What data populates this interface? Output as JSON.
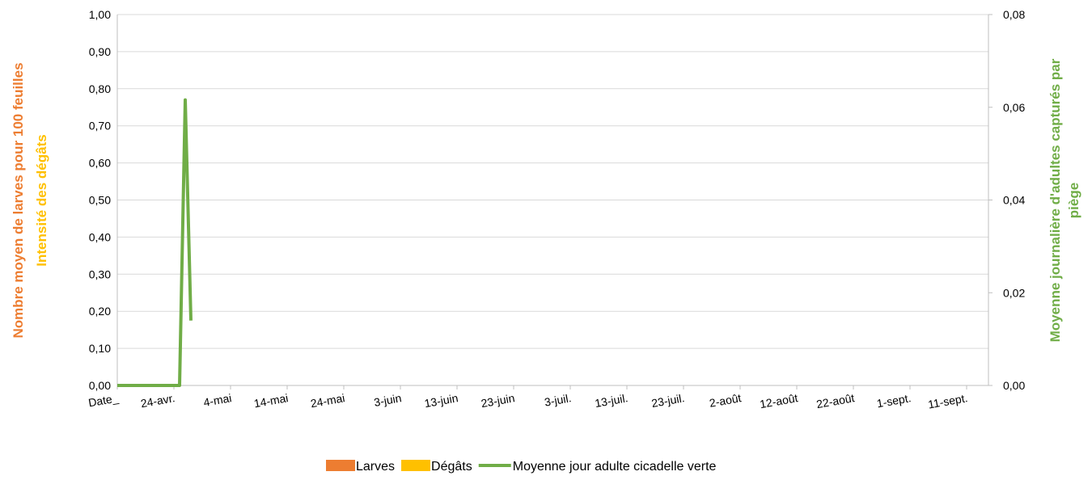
{
  "chart_data": {
    "type": "combo",
    "categories": [
      "Date_",
      "24-avr.",
      "4-mai",
      "14-mai",
      "24-mai",
      "3-juin",
      "13-juin",
      "23-juin",
      "3-juil.",
      "13-juil.",
      "23-juil.",
      "2-août",
      "12-août",
      "22-août",
      "1-sept.",
      "11-sept."
    ],
    "ylabel": "Nombre moyen de larves pour 100 feuilles",
    "ylabel2": "Intensité des dégâts",
    "y2label": [
      "Moyenne journalière d'adultes capturés par",
      "piège"
    ],
    "ylim": [
      0,
      1
    ],
    "yticks": [
      {
        "value": 0,
        "label": "0,00"
      },
      {
        "value": 0.1,
        "label": "0,10"
      },
      {
        "value": 0.2,
        "label": "0,20"
      },
      {
        "value": 0.3,
        "label": "0,30"
      },
      {
        "value": 0.4,
        "label": "0,40"
      },
      {
        "value": 0.5,
        "label": "0,50"
      },
      {
        "value": 0.6,
        "label": "0,60"
      },
      {
        "value": 0.7,
        "label": "0,70"
      },
      {
        "value": 0.8,
        "label": "0,80"
      },
      {
        "value": 0.9,
        "label": "0,90"
      },
      {
        "value": 1,
        "label": "1,00"
      }
    ],
    "y2lim": [
      0,
      0.08
    ],
    "y2ticks": [
      {
        "value": 0,
        "label": "0,00"
      },
      {
        "value": 0.02,
        "label": "0,02"
      },
      {
        "value": 0.04,
        "label": "0,04"
      },
      {
        "value": 0.06,
        "label": "0,06"
      },
      {
        "value": 0.08,
        "label": "0,08"
      }
    ],
    "grid": true,
    "series": [
      {
        "name": "Larves",
        "kind": "bar",
        "color": "#ED7D31",
        "values": [
          null,
          null,
          null,
          null,
          null,
          null,
          null,
          null,
          null,
          null,
          null,
          null,
          null,
          null,
          null,
          null
        ]
      },
      {
        "name": "Dégâts",
        "kind": "bar",
        "color": "#FFC000",
        "values": [
          null,
          null,
          null,
          null,
          null,
          null,
          null,
          null,
          null,
          null,
          null,
          null,
          null,
          null,
          null,
          null
        ]
      },
      {
        "name": "Moyenne jour adulte cicadelle verte",
        "kind": "line",
        "axis": "y2",
        "color": "#70AD47",
        "x": [
          0,
          1.1,
          1.2,
          1.3
        ],
        "values": [
          0,
          0,
          0.0616,
          0.014
        ]
      }
    ]
  }
}
